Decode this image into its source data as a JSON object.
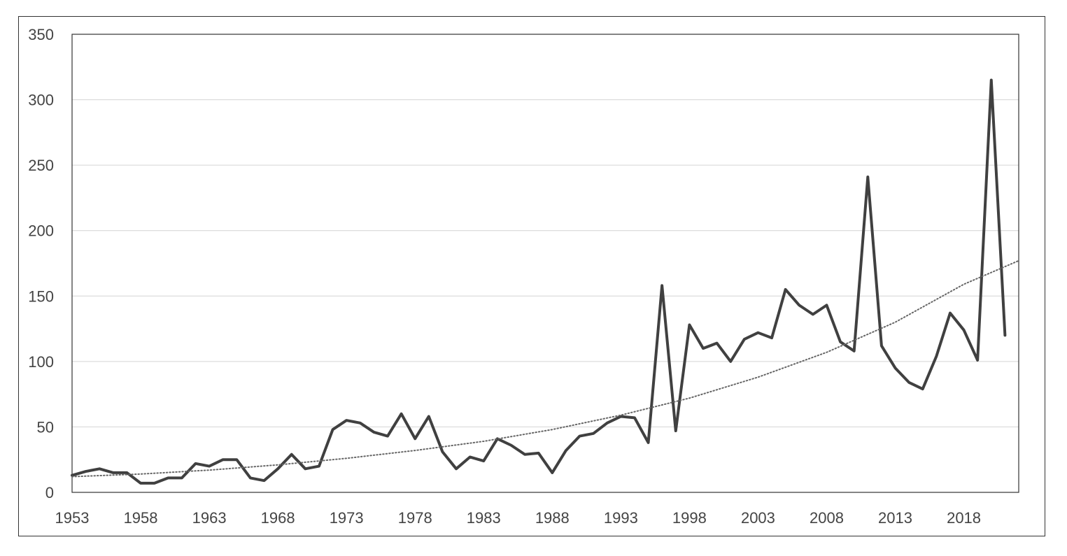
{
  "chart_data": {
    "type": "line",
    "title": "",
    "xlabel": "",
    "ylabel": "",
    "xlim": [
      1953,
      2022
    ],
    "ylim": [
      0,
      350
    ],
    "y_ticks": [
      0,
      50,
      100,
      150,
      200,
      250,
      300,
      350
    ],
    "x_tick_labels": [
      "1953",
      "1958",
      "1963",
      "1968",
      "1973",
      "1978",
      "1983",
      "1988",
      "1993",
      "1998",
      "2003",
      "2008",
      "2013",
      "2018"
    ],
    "grid": "horizontal",
    "legend": "none",
    "series": [
      {
        "style": "solid",
        "color": "#404040",
        "x": [
          1953,
          1954,
          1955,
          1956,
          1957,
          1958,
          1959,
          1960,
          1961,
          1962,
          1963,
          1964,
          1965,
          1966,
          1967,
          1968,
          1969,
          1970,
          1971,
          1972,
          1973,
          1974,
          1975,
          1976,
          1977,
          1978,
          1979,
          1980,
          1981,
          1982,
          1983,
          1984,
          1985,
          1986,
          1987,
          1988,
          1989,
          1990,
          1991,
          1992,
          1993,
          1994,
          1995,
          1996,
          1997,
          1998,
          1999,
          2000,
          2001,
          2002,
          2003,
          2004,
          2005,
          2006,
          2007,
          2008,
          2009,
          2010,
          2011,
          2012,
          2013,
          2014,
          2015,
          2016,
          2017,
          2018,
          2019,
          2020,
          2021,
          2022
        ],
        "values": [
          13,
          16,
          18,
          15,
          15,
          7,
          7,
          11,
          11,
          22,
          20,
          25,
          25,
          11,
          9,
          18,
          29,
          18,
          20,
          48,
          55,
          53,
          46,
          43,
          60,
          41,
          58,
          31,
          18,
          27,
          24,
          41,
          36,
          29,
          30,
          15,
          32,
          43,
          45,
          53,
          58,
          57,
          38,
          158,
          47,
          128,
          110,
          114,
          100,
          117,
          122,
          118,
          155,
          143,
          136,
          143,
          115,
          108,
          241,
          112,
          95,
          84,
          79,
          104,
          137,
          124,
          101,
          315,
          120,
          null
        ]
      },
      {
        "style": "dotted",
        "color": "#666666",
        "x": [
          1953,
          1958,
          1963,
          1968,
          1973,
          1978,
          1983,
          1988,
          1993,
          1998,
          2003,
          2008,
          2013,
          2018,
          2022
        ],
        "values": [
          12,
          14,
          17,
          21,
          26,
          32,
          39,
          48,
          59,
          72,
          88,
          107,
          130,
          159,
          177
        ]
      }
    ]
  }
}
